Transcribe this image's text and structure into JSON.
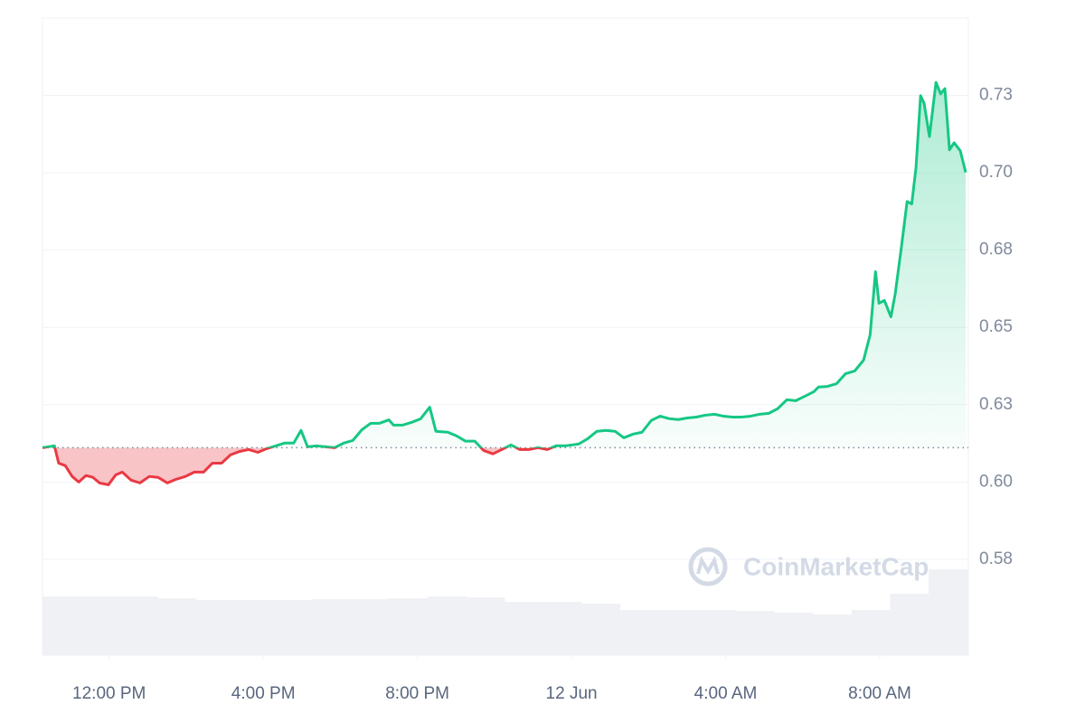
{
  "chart_data": {
    "type": "line",
    "x": [
      10.27,
      10.58,
      10.69,
      10.86,
      11.04,
      11.21,
      11.4,
      11.58,
      11.75,
      11.98,
      12.17,
      12.34,
      12.57,
      12.8,
      13.04,
      13.27,
      13.51,
      13.74,
      13.98,
      14.21,
      14.45,
      14.68,
      14.92,
      15.15,
      15.39,
      15.62,
      15.86,
      16.09,
      16.33,
      16.56,
      16.79,
      16.98,
      17.15,
      17.38,
      17.62,
      17.85,
      18.09,
      18.32,
      18.56,
      18.79,
      19.02,
      19.26,
      19.38,
      19.61,
      19.85,
      20.08,
      20.32,
      20.48,
      20.79,
      21.02,
      21.25,
      21.49,
      21.72,
      21.96,
      22.19,
      22.43,
      22.66,
      22.9,
      23.13,
      23.37,
      23.6,
      23.84,
      24.19,
      24.42,
      24.66,
      24.89,
      25.13,
      25.36,
      25.6,
      25.83,
      26.07,
      26.3,
      26.53,
      26.77,
      27.0,
      27.24,
      27.47,
      27.71,
      27.94,
      28.18,
      28.41,
      28.65,
      28.88,
      29.12,
      29.35,
      29.59,
      29.82,
      30.05,
      30.29,
      30.41,
      30.64,
      30.88,
      31.11,
      31.35,
      31.58,
      31.75,
      31.89,
      31.98,
      32.12,
      32.29,
      32.4,
      32.57,
      32.71,
      32.83,
      32.94,
      33.06,
      33.15,
      33.29,
      33.46,
      33.58,
      33.69,
      33.81,
      33.93,
      34.09,
      34.23
    ],
    "values": [
      0.6111,
      0.6117,
      0.6061,
      0.6053,
      0.6018,
      0.6,
      0.6021,
      0.6015,
      0.5997,
      0.5991,
      0.6023,
      0.6032,
      0.6006,
      0.5997,
      0.6018,
      0.6015,
      0.5997,
      0.6009,
      0.6018,
      0.6032,
      0.6032,
      0.6061,
      0.6061,
      0.6088,
      0.6099,
      0.6105,
      0.6096,
      0.6108,
      0.6117,
      0.6126,
      0.6126,
      0.6167,
      0.6114,
      0.6117,
      0.6114,
      0.6111,
      0.6126,
      0.6134,
      0.6169,
      0.619,
      0.619,
      0.6201,
      0.6184,
      0.6184,
      0.6193,
      0.6204,
      0.6242,
      0.6164,
      0.6161,
      0.6149,
      0.6132,
      0.6132,
      0.6102,
      0.6091,
      0.6105,
      0.612,
      0.6105,
      0.6105,
      0.6111,
      0.6105,
      0.6117,
      0.6117,
      0.6123,
      0.614,
      0.6164,
      0.6167,
      0.6164,
      0.6143,
      0.6155,
      0.6161,
      0.6199,
      0.6213,
      0.6205,
      0.6202,
      0.6207,
      0.621,
      0.6216,
      0.6219,
      0.6213,
      0.621,
      0.621,
      0.6213,
      0.6219,
      0.6222,
      0.6237,
      0.6266,
      0.6263,
      0.6277,
      0.6292,
      0.6307,
      0.6309,
      0.6318,
      0.635,
      0.6359,
      0.6394,
      0.6476,
      0.668,
      0.6578,
      0.6587,
      0.6534,
      0.6607,
      0.6767,
      0.6907,
      0.6899,
      0.7015,
      0.7249,
      0.7225,
      0.7117,
      0.7292,
      0.7255,
      0.7272,
      0.7074,
      0.7097,
      0.7071,
      0.7001
    ],
    "baseline": 0.6111,
    "up_color": "#16c784",
    "down_color": "#ea3943",
    "xlim": [
      10.27,
      34.3
    ],
    "xticks": [
      {
        "value": 12,
        "label": "12:00 PM"
      },
      {
        "value": 16,
        "label": "4:00 PM"
      },
      {
        "value": 20,
        "label": "8:00 PM"
      },
      {
        "value": 24,
        "label": "12 Jun"
      },
      {
        "value": 28,
        "label": "4:00 AM"
      },
      {
        "value": 32,
        "label": "8:00 AM"
      }
    ],
    "ylim": [
      0.544,
      0.75
    ],
    "yticks": [
      {
        "value": 0.575,
        "label": "0.58"
      },
      {
        "value": 0.6,
        "label": "0.60"
      },
      {
        "value": 0.625,
        "label": "0.63"
      },
      0.65,
      {
        "value": 0.675,
        "label": "0.68"
      },
      {
        "value": 0.7,
        "label": "0.70"
      },
      {
        "value": 0.725,
        "label": "0.73"
      }
    ],
    "grid": true,
    "volume": {
      "x": [
        10.27,
        11.27,
        12.27,
        13.27,
        14.27,
        15.27,
        16.27,
        17.27,
        18.27,
        19.27,
        20.27,
        21.27,
        22.27,
        23.27,
        24.27,
        25.27,
        26.27,
        27.27,
        28.27,
        29.27,
        30.27,
        31.27,
        32.27,
        33.27
      ],
      "values": [
        65,
        65,
        65,
        63,
        61,
        61,
        61,
        62,
        62,
        63,
        65,
        64,
        59,
        59,
        57,
        50,
        50,
        50,
        49,
        47,
        45,
        50,
        68,
        95
      ],
      "lim": [
        0,
        100
      ],
      "color": "#eff1f4"
    },
    "watermark": "CoinMarketCap"
  }
}
